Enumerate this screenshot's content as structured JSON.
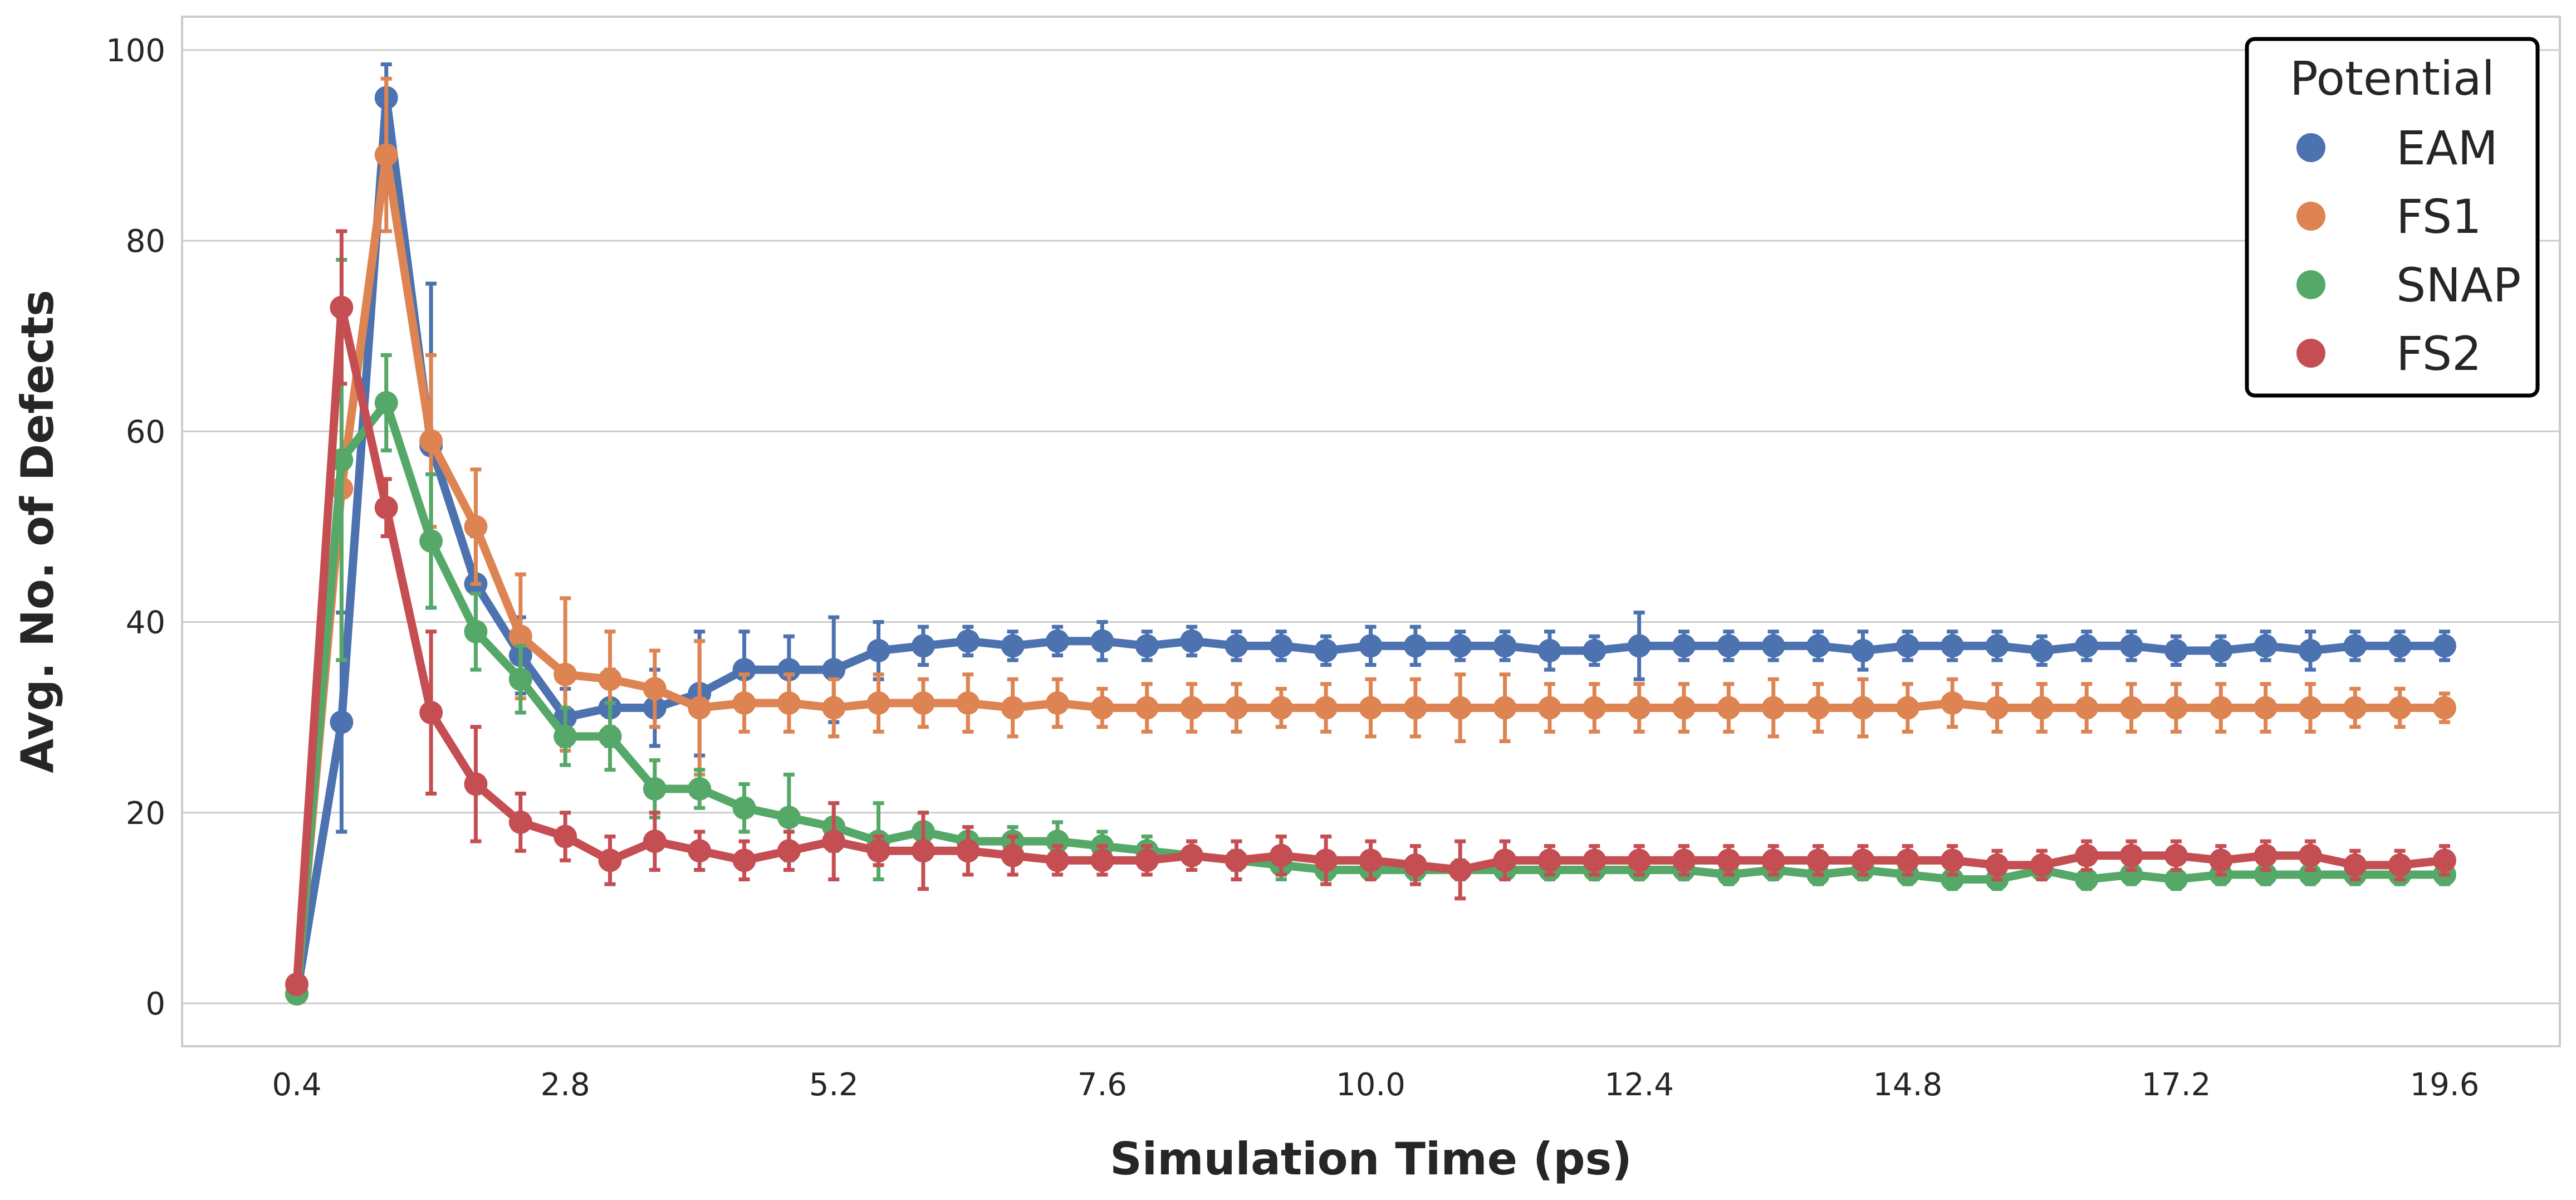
{
  "chart_data": {
    "type": "line",
    "xlabel": "Simulation Time (ps)",
    "ylabel": "Avg. No. of Defects",
    "x": [
      0.4,
      0.8,
      1.2,
      1.6,
      2.0,
      2.4,
      2.8,
      3.2,
      3.6,
      4.0,
      4.4,
      4.8,
      5.2,
      5.6,
      6.0,
      6.4,
      6.8,
      7.2,
      7.6,
      8.0,
      8.4,
      8.8,
      9.2,
      9.6,
      10.0,
      10.4,
      10.8,
      11.2,
      11.6,
      12.0,
      12.4,
      12.8,
      13.2,
      13.6,
      14.0,
      14.4,
      14.8,
      15.2,
      15.6,
      16.0,
      16.4,
      16.8,
      17.2,
      17.6,
      18.0,
      18.4,
      18.8,
      19.2,
      19.6
    ],
    "xticks": [
      "0.4",
      "2.8",
      "5.2",
      "7.6",
      "10.0",
      "12.4",
      "14.8",
      "17.2",
      "19.6"
    ],
    "xtick_values": [
      0.4,
      2.8,
      5.2,
      7.6,
      10.0,
      12.4,
      14.8,
      17.2,
      19.6
    ],
    "yticks": [
      0,
      20,
      40,
      60,
      80,
      100
    ],
    "ylim": [
      -4.5,
      103.5
    ],
    "grid": true,
    "legend": {
      "title": "Potential",
      "placement": "top-right"
    },
    "series": [
      {
        "name": "EAM",
        "color": "#4c72b0",
        "values": [
          1,
          29.5,
          95,
          58.5,
          44,
          36.5,
          30,
          31,
          31,
          32.5,
          35,
          35,
          35,
          37,
          37.5,
          38,
          37.5,
          38,
          38,
          37.5,
          38,
          37.5,
          37.5,
          37,
          37.5,
          37.5,
          37.5,
          37.5,
          37,
          37,
          37.5,
          37.5,
          37.5,
          37.5,
          37.5,
          37,
          37.5,
          37.5,
          37.5,
          37,
          37.5,
          37.5,
          37,
          37,
          37.5,
          37,
          37.5,
          37.5,
          37.5
        ],
        "err": [
          0.5,
          11.5,
          3.5,
          17,
          5,
          4,
          3,
          4,
          4,
          6.5,
          4,
          3.5,
          5.5,
          3,
          2,
          1.5,
          1.5,
          1.5,
          2,
          1.5,
          1.5,
          1.5,
          1.5,
          1.5,
          2,
          2,
          1.5,
          1.5,
          2,
          1.5,
          3.5,
          1.5,
          1.5,
          1.5,
          1.5,
          2,
          1.5,
          1.5,
          1.5,
          1.5,
          1.5,
          1.5,
          1.5,
          1.5,
          1.5,
          2,
          1.5,
          1.5,
          1.5
        ]
      },
      {
        "name": "FS1",
        "color": "#dd8452",
        "values": [
          1,
          54,
          89,
          59,
          50,
          38.5,
          34.5,
          34,
          33,
          31,
          31.5,
          31.5,
          31,
          31.5,
          31.5,
          31.5,
          31,
          31.5,
          31,
          31,
          31,
          31,
          31,
          31,
          31,
          31,
          31,
          31,
          31,
          31,
          31,
          31,
          31,
          31,
          31,
          31,
          31,
          31.5,
          31,
          31,
          31,
          31,
          31,
          31,
          31,
          31,
          31,
          31,
          31
        ],
        "err": [
          0.5,
          18,
          8,
          9,
          6,
          6.5,
          8,
          5,
          4,
          7,
          3,
          3,
          3,
          3,
          2.5,
          3,
          3,
          2.5,
          2,
          2.5,
          2.5,
          2.5,
          2,
          2.5,
          3,
          3,
          3.5,
          3.5,
          2.5,
          2.5,
          2.5,
          2.5,
          2.5,
          3,
          2.5,
          3,
          2.5,
          2.5,
          2.5,
          2.5,
          2.5,
          2.5,
          2.5,
          2.5,
          2.5,
          2.5,
          2,
          2,
          1.5
        ]
      },
      {
        "name": "SNAP",
        "color": "#55a868",
        "values": [
          1,
          57,
          63,
          48.5,
          39,
          34,
          28,
          28,
          22.5,
          22.5,
          20.5,
          19.5,
          18.5,
          17,
          18,
          17,
          17,
          17,
          16.5,
          16,
          15.5,
          15,
          14.5,
          14,
          14,
          14,
          14,
          14,
          14,
          14,
          14,
          14,
          13.5,
          14,
          13.5,
          14,
          13.5,
          13,
          13,
          14,
          13,
          13.5,
          13,
          13.5,
          13.5,
          13.5,
          13.5,
          13.5,
          13.5
        ],
        "err": [
          0.5,
          21,
          5,
          7,
          4,
          3.5,
          3,
          3.5,
          3,
          2,
          2.5,
          4.5,
          2.5,
          4,
          2,
          1.5,
          1.5,
          2,
          1.5,
          1.5,
          1.5,
          1,
          1.5,
          1,
          1,
          1,
          1,
          1,
          1,
          1,
          1,
          1,
          1,
          1,
          1,
          1,
          1,
          1,
          1,
          1,
          1,
          1,
          1,
          1,
          1,
          1,
          1,
          1,
          1
        ]
      },
      {
        "name": "FS2",
        "color": "#c44e52",
        "values": [
          2,
          73,
          52,
          30.5,
          23,
          19,
          17.5,
          15,
          17,
          16,
          15,
          16,
          17,
          16,
          16,
          16,
          15.5,
          15,
          15,
          15,
          15.5,
          15,
          15.5,
          15,
          15,
          14.5,
          14,
          15,
          15,
          15,
          15,
          15,
          15,
          15,
          15,
          15,
          15,
          15,
          14.5,
          14.5,
          15.5,
          15.5,
          15.5,
          15,
          15.5,
          15.5,
          14.5,
          14.5,
          15
        ],
        "err": [
          0.5,
          8,
          3,
          8.5,
          6,
          3,
          2.5,
          2.5,
          3,
          2,
          2,
          2,
          4,
          1.5,
          4,
          2.5,
          2,
          1.5,
          1.5,
          1.5,
          1.5,
          2,
          2,
          2.5,
          2,
          2,
          3,
          2,
          1.5,
          1.5,
          1.5,
          1.5,
          1.5,
          1.5,
          1.5,
          1.5,
          1.5,
          1.5,
          1.5,
          1.5,
          1.5,
          1.5,
          1.5,
          1.5,
          1.5,
          1.5,
          1.5,
          1.5,
          1.5
        ]
      }
    ]
  }
}
